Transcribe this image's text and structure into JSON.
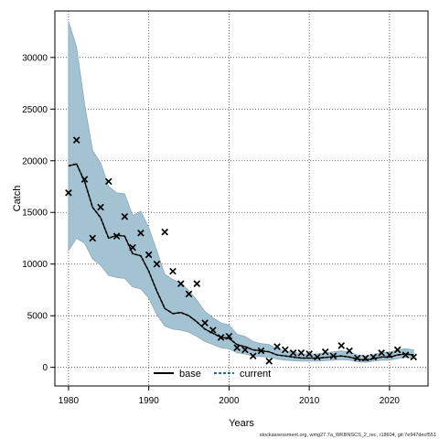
{
  "chart_data": {
    "type": "line",
    "xlabel": "Years",
    "ylabel": "Catch",
    "xlim": [
      1978.3,
      2024.8
    ],
    "ylim": [
      -1800,
      34500
    ],
    "x_ticks": [
      1980,
      1990,
      2000,
      2010,
      2020
    ],
    "y_ticks": [
      0,
      5000,
      10000,
      15000,
      20000,
      25000,
      30000
    ],
    "grid": true,
    "legend_position": "bottom-center",
    "footnote": "stockassessment.org, wmg27.7a_WKBNSCS_2_rec, r18604, git:7e947decf551",
    "colors": {
      "band": "#a3c3d3",
      "band_edge": "#8ba8b8",
      "line": "#000000"
    },
    "series": [
      {
        "name": "base",
        "style": "solid",
        "x": [
          1980,
          1981,
          1982,
          1983,
          1984,
          1985,
          1986,
          1987,
          1988,
          1989,
          1990,
          1991,
          1992,
          1993,
          1994,
          1995,
          1996,
          1997,
          1998,
          1999,
          2000,
          2001,
          2002,
          2003,
          2004,
          2005,
          2006,
          2007,
          2008,
          2009,
          2010,
          2011,
          2012,
          2013,
          2014,
          2015,
          2016,
          2017,
          2018,
          2019,
          2020,
          2021,
          2022,
          2023
        ],
        "y": [
          19500,
          19700,
          18000,
          15500,
          14500,
          12500,
          12800,
          12700,
          11000,
          10800,
          9300,
          7400,
          5700,
          5200,
          5300,
          5000,
          4400,
          3700,
          3300,
          2900,
          2800,
          2200,
          2000,
          1700,
          1600,
          1500,
          1200,
          1100,
          1000,
          900,
          900,
          900,
          950,
          1050,
          1100,
          1000,
          800,
          700,
          850,
          1000,
          1000,
          1200,
          1300,
          1200
        ]
      },
      {
        "name": "current",
        "style": "dashed",
        "x": [
          1980,
          1981,
          1982,
          1983,
          1984,
          1985,
          1986,
          1987,
          1988,
          1989,
          1990,
          1991,
          1992,
          1993,
          1994,
          1995,
          1996,
          1997,
          1998,
          1999,
          2000,
          2001,
          2002,
          2003,
          2004,
          2005,
          2006,
          2007,
          2008,
          2009,
          2010,
          2011,
          2012,
          2013,
          2014,
          2015,
          2016,
          2017,
          2018,
          2019,
          2020,
          2021,
          2022,
          2023
        ],
        "y": [
          19500,
          19700,
          18000,
          15500,
          14500,
          12500,
          12800,
          12700,
          11000,
          10800,
          9300,
          7400,
          5700,
          5200,
          5300,
          5000,
          4400,
          3700,
          3300,
          2900,
          2800,
          2200,
          2000,
          1700,
          1600,
          1500,
          1200,
          1100,
          1000,
          900,
          900,
          900,
          950,
          1050,
          1100,
          1000,
          800,
          700,
          850,
          1000,
          1000,
          1200,
          1300,
          1200
        ]
      }
    ],
    "band": {
      "x": [
        1980,
        1981,
        1982,
        1983,
        1984,
        1985,
        1986,
        1987,
        1988,
        1989,
        1990,
        1991,
        1992,
        1993,
        1994,
        1995,
        1996,
        1997,
        1998,
        1999,
        2000,
        2001,
        2002,
        2003,
        2004,
        2005,
        2006,
        2007,
        2008,
        2009,
        2010,
        2011,
        2012,
        2013,
        2014,
        2015,
        2016,
        2017,
        2018,
        2019,
        2020,
        2021,
        2022,
        2023
      ],
      "upper": [
        33500,
        31000,
        25500,
        21000,
        19800,
        17500,
        16900,
        16800,
        14700,
        15100,
        13500,
        11300,
        9000,
        8500,
        8200,
        7400,
        6500,
        5400,
        4800,
        4300,
        4100,
        3200,
        3000,
        2500,
        2300,
        2200,
        1800,
        1600,
        1500,
        1300,
        1300,
        1300,
        1400,
        1500,
        1600,
        1500,
        1200,
        1100,
        1250,
        1450,
        1450,
        1700,
        1800,
        1700
      ],
      "lower": [
        11300,
        12500,
        12000,
        10500,
        9900,
        8900,
        8700,
        8600,
        7800,
        7600,
        6700,
        5100,
        4000,
        3700,
        3600,
        3400,
        3000,
        2500,
        2200,
        1900,
        1800,
        1400,
        1300,
        1100,
        1050,
        950,
        800,
        700,
        650,
        600,
        600,
        600,
        650,
        700,
        750,
        700,
        550,
        480,
        600,
        700,
        700,
        850,
        950,
        850
      ]
    },
    "observations": {
      "x": [
        1980,
        1981,
        1982,
        1983,
        1984,
        1985,
        1986,
        1987,
        1988,
        1989,
        1990,
        1991,
        1992,
        1993,
        1994,
        1995,
        1996,
        1997,
        1998,
        1999,
        2000,
        2001,
        2002,
        2003,
        2004,
        2005,
        2006,
        2007,
        2008,
        2009,
        2010,
        2011,
        2012,
        2013,
        2014,
        2015,
        2016,
        2017,
        2018,
        2019,
        2020,
        2021,
        2022,
        2023
      ],
      "y": [
        16900,
        22000,
        18200,
        12500,
        15500,
        18000,
        12700,
        14600,
        11600,
        13000,
        10900,
        10000,
        13100,
        9300,
        8100,
        7100,
        8100,
        4300,
        3600,
        2900,
        3000,
        1900,
        1700,
        1100,
        1600,
        600,
        2000,
        1700,
        1400,
        1400,
        1300,
        1000,
        1500,
        1100,
        2100,
        1600,
        900,
        900,
        1000,
        1400,
        1200,
        1700,
        1200,
        1000
      ]
    }
  }
}
